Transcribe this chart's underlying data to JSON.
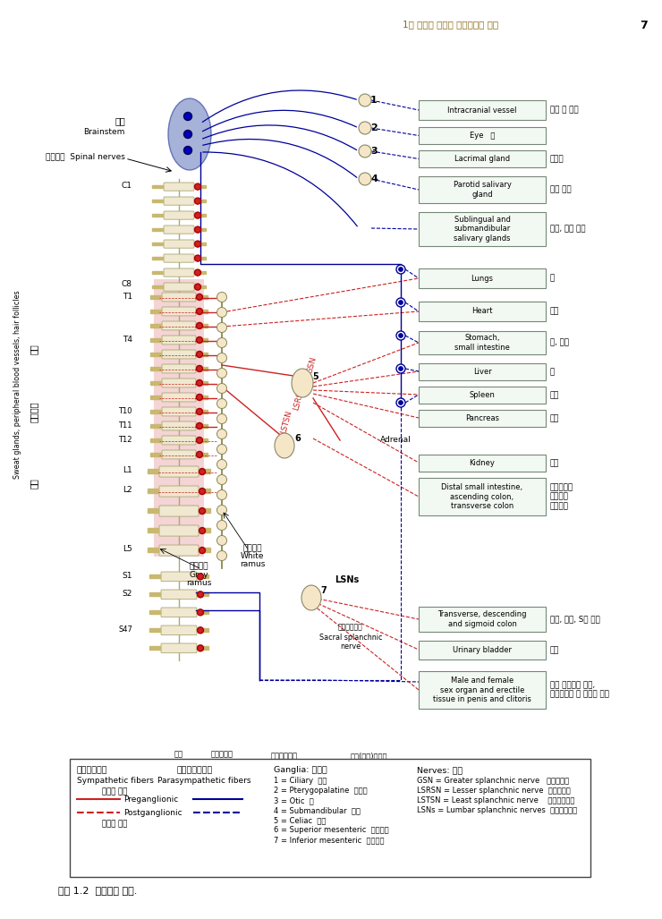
{
  "page_header": "1장 구조적 진단과 수기의학의 역사",
  "page_number": "7",
  "figure_caption": "그림 1.2  자율신경 분포.",
  "background_color": "#ffffff",
  "title_color": "#8B6914",
  "spine_fill_sympathetic": "#e8a0a0",
  "spine_fill_parasympathetic": "#a0a0d0",
  "ganglion_color": "#f5e6c8",
  "red_pre": "#cc2222",
  "red_post": "#cc2222",
  "blue_pre": "#000099",
  "blue_post": "#000099"
}
